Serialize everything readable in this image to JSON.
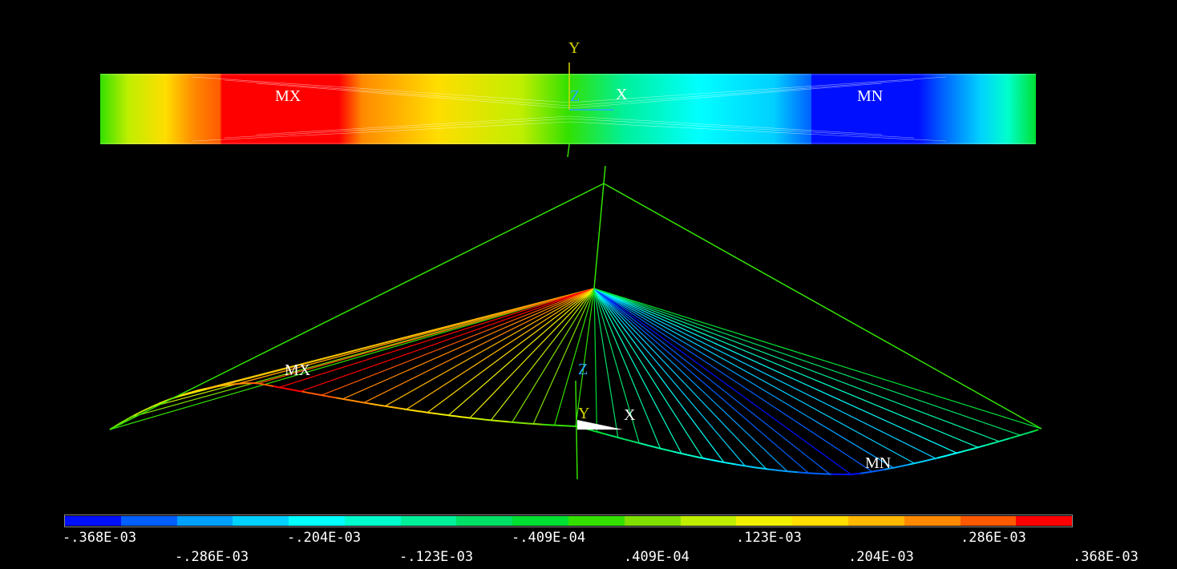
{
  "view_top": {
    "marks": {
      "max": "MX",
      "min": "MN"
    },
    "axes": {
      "y": "Y",
      "z": "Z",
      "x": "X"
    }
  },
  "view_bottom": {
    "marks": {
      "max": "MX",
      "min": "MN"
    },
    "axes": {
      "z": "Z",
      "y": "Y",
      "x": "X"
    }
  },
  "legend": {
    "colors": [
      "#0010ff",
      "#0060ff",
      "#00a0ff",
      "#00d0ff",
      "#00ffff",
      "#00ffcc",
      "#00f09a",
      "#00e066",
      "#00e033",
      "#33e000",
      "#80e000",
      "#c0ee00",
      "#f0f000",
      "#ffdd00",
      "#ffb800",
      "#ff8a00",
      "#ff5a00",
      "#ff0000"
    ],
    "ticks_upper": [
      "-.368E-03",
      "-.204E-03",
      "-.409E-04",
      ".123E-03",
      ".286E-03"
    ],
    "ticks_lower": [
      "-.286E-03",
      "-.123E-03",
      ".409E-04",
      ".204E-03",
      ".368E-03"
    ]
  }
}
